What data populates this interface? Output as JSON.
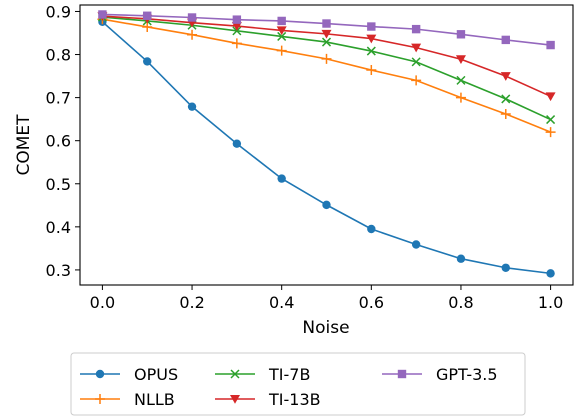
{
  "chart_data": {
    "type": "line",
    "xlabel": "Noise",
    "ylabel": "COMET",
    "x": [
      0.0,
      0.1,
      0.2,
      0.3,
      0.4,
      0.5,
      0.6,
      0.7,
      0.8,
      0.9,
      1.0
    ],
    "xlim": [
      -0.05,
      1.05
    ],
    "ylim": [
      0.265,
      0.915
    ],
    "xticks": [
      "0.0",
      "0.2",
      "0.4",
      "0.6",
      "0.8",
      "1.0"
    ],
    "yticks": [
      "0.3",
      "0.4",
      "0.5",
      "0.6",
      "0.7",
      "0.8",
      "0.9"
    ],
    "grid": false,
    "legend_position": "bottom-outside",
    "series": [
      {
        "name": "OPUS",
        "color": "#1f77b4",
        "marker": "circle",
        "values": [
          0.876,
          0.784,
          0.679,
          0.593,
          0.512,
          0.451,
          0.395,
          0.359,
          0.326,
          0.305,
          0.292
        ]
      },
      {
        "name": "NLLB",
        "color": "#ff7f0e",
        "marker": "plus",
        "values": [
          0.882,
          0.864,
          0.846,
          0.826,
          0.809,
          0.79,
          0.764,
          0.74,
          0.7,
          0.662,
          0.62
        ]
      },
      {
        "name": "TI-7B",
        "color": "#2ca02c",
        "marker": "x",
        "values": [
          0.887,
          0.878,
          0.868,
          0.855,
          0.842,
          0.829,
          0.808,
          0.783,
          0.74,
          0.697,
          0.649
        ]
      },
      {
        "name": "TI-13B",
        "color": "#d62728",
        "marker": "triangle-down",
        "values": [
          0.889,
          0.883,
          0.874,
          0.866,
          0.856,
          0.848,
          0.837,
          0.816,
          0.789,
          0.75,
          0.703
        ]
      },
      {
        "name": "GPT-3.5",
        "color": "#9467bd",
        "marker": "square",
        "values": [
          0.893,
          0.89,
          0.886,
          0.881,
          0.878,
          0.872,
          0.865,
          0.859,
          0.847,
          0.834,
          0.822
        ]
      }
    ]
  }
}
